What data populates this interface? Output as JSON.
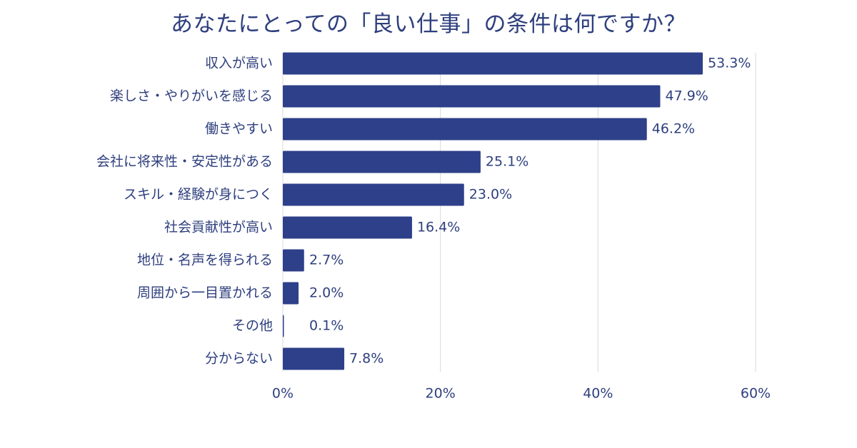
{
  "chart_data": {
    "type": "bar",
    "orientation": "horizontal",
    "title": "あなたにとっての「良い仕事」の条件は何ですか？",
    "categories": [
      "収入が高い",
      "楽しさ・やりがいを感じる",
      "働きやすい",
      "会社に将来性・安定性がある",
      "スキル・経験が身につく",
      "社会貢献性が高い",
      "地位・名声を得られる",
      "周囲から一目置かれる",
      "その他",
      "分からない"
    ],
    "values": [
      53.3,
      47.9,
      46.2,
      25.1,
      23.0,
      16.4,
      2.7,
      2.0,
      0.1,
      7.8
    ],
    "value_labels": [
      "53.3%",
      "47.9%",
      "46.2%",
      "25.1%",
      "23.0%",
      "16.4%",
      "2.7%",
      "2.0%",
      "0.1%",
      "7.8%"
    ],
    "xlim": [
      0,
      60
    ],
    "xticks": [
      0,
      20,
      40,
      60
    ],
    "xtick_labels": [
      "0%",
      "20%",
      "40%",
      "60%"
    ],
    "xlabel": "",
    "ylabel": "",
    "grid": true,
    "bar_color": "#2e4089",
    "grid_color": "#d9d9d9",
    "text_color": "#2e3f7e"
  }
}
